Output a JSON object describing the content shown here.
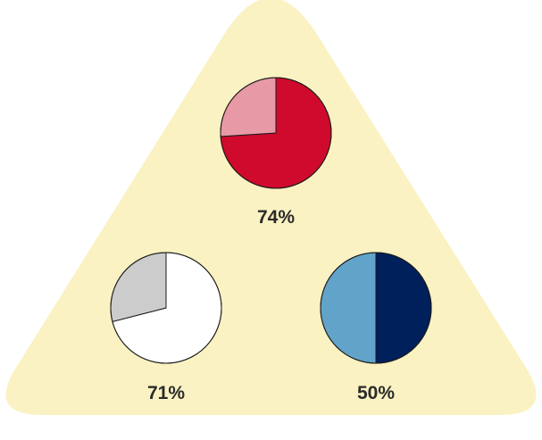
{
  "background": {
    "shape": "rounded-triangle",
    "color": "#FAF2C2"
  },
  "chart_data": [
    {
      "type": "pie",
      "position": "top",
      "value_percent": 74,
      "label": "74%",
      "slices": [
        {
          "value": 74,
          "color": "#CF0A2C"
        },
        {
          "value": 26,
          "color": "#E899A6"
        }
      ]
    },
    {
      "type": "pie",
      "position": "bottom-left",
      "value_percent": 71,
      "label": "71%",
      "slices": [
        {
          "value": 71,
          "color": "#FFFFFF"
        },
        {
          "value": 29,
          "color": "#CCCCCC"
        }
      ]
    },
    {
      "type": "pie",
      "position": "bottom-right",
      "value_percent": 50,
      "label": "50%",
      "slices": [
        {
          "value": 50,
          "color": "#00205B"
        },
        {
          "value": 50,
          "color": "#62A4C9"
        }
      ]
    }
  ]
}
